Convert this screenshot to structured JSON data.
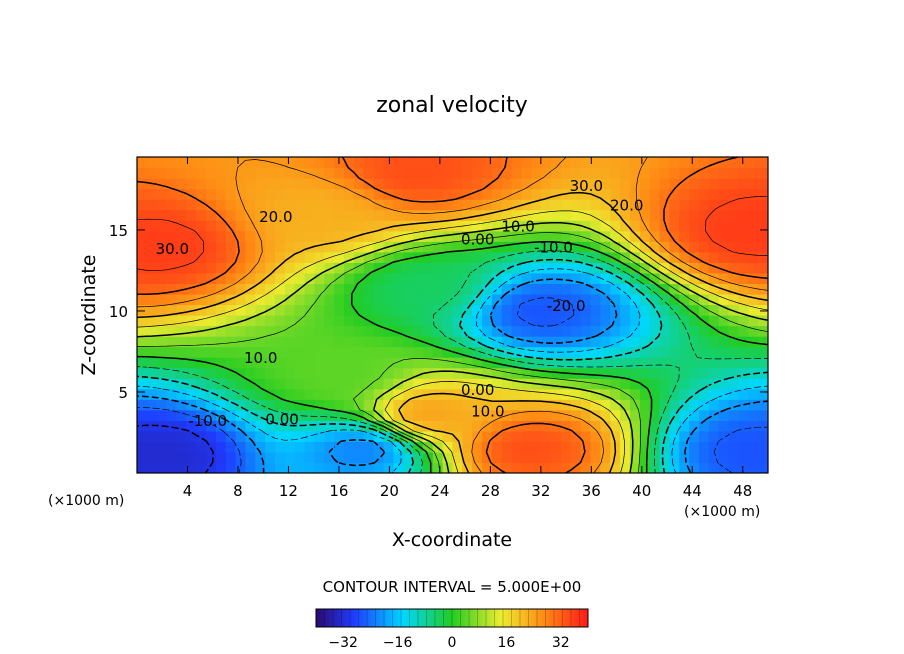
{
  "chart_data": {
    "type": "heatmap",
    "title": "zonal velocity",
    "xlabel": "X-coordinate",
    "ylabel": "Z-coordinate",
    "x_unit_note_left": "(×1000 m)",
    "x_unit_note_right": "(×1000 m)",
    "xlim": [
      0,
      50
    ],
    "ylim": [
      0,
      19.5
    ],
    "x_ticks": [
      4,
      8,
      12,
      16,
      20,
      24,
      28,
      32,
      36,
      40,
      44,
      48
    ],
    "y_ticks": [
      5,
      10,
      15
    ],
    "contour_interval_label": "CONTOUR INTERVAL = 5.000E+00",
    "colorbar": {
      "min": -40,
      "max": 40,
      "ticks": [
        -32,
        -16,
        0,
        16,
        32
      ]
    },
    "contour_labels": [
      {
        "text": "30.0",
        "x": 35.6,
        "z": 17.4
      },
      {
        "text": "20.0",
        "x": 38.8,
        "z": 16.2
      },
      {
        "text": "20.0",
        "x": 11.0,
        "z": 15.5
      },
      {
        "text": "30.0",
        "x": 2.8,
        "z": 13.5
      },
      {
        "text": "10.0",
        "x": 30.2,
        "z": 14.9
      },
      {
        "text": "0.00",
        "x": 27.0,
        "z": 14.1
      },
      {
        "text": "-10.0",
        "x": 33.0,
        "z": 13.6
      },
      {
        "text": "-20.0",
        "x": 34.0,
        "z": 10.0
      },
      {
        "text": "10.0",
        "x": 9.8,
        "z": 6.8
      },
      {
        "text": "0.00",
        "x": 27.0,
        "z": 4.8
      },
      {
        "text": "10.0",
        "x": 27.8,
        "z": 3.5
      },
      {
        "text": "-10.0",
        "x": 5.6,
        "z": 2.9
      },
      {
        "text": "0.00",
        "x": 11.5,
        "z": 3.0
      }
    ],
    "field_centers": [
      {
        "x": 2,
        "z": 1.2,
        "value": -32
      },
      {
        "x": 18,
        "z": 1.5,
        "value": -22
      },
      {
        "x": 49,
        "z": 1.3,
        "value": -26
      },
      {
        "x": 32,
        "z": 10,
        "value": -26
      },
      {
        "x": 31,
        "z": 1.5,
        "value": 34
      },
      {
        "x": 23,
        "z": 3.6,
        "value": 24
      },
      {
        "x": 2,
        "z": 14,
        "value": 36
      },
      {
        "x": 49,
        "z": 15,
        "value": 36
      },
      {
        "x": 22,
        "z": 18.5,
        "value": 34
      },
      {
        "x": 15,
        "z": 16,
        "value": 22
      },
      {
        "x": 16.5,
        "z": 6,
        "value": 4
      },
      {
        "x": 23,
        "z": 11.5,
        "value": -4
      }
    ],
    "colors": {
      "min": "#2a0a6e",
      "blue": "#1f3cff",
      "cyan": "#00d7ff",
      "green": "#22cc22",
      "yellow": "#ecec30",
      "orange": "#ff8a14",
      "max": "#ff1a1a"
    }
  }
}
